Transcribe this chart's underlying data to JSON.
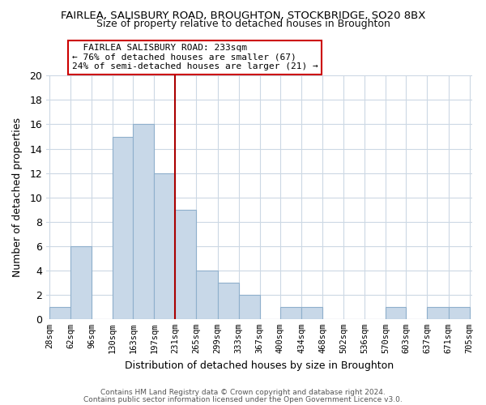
{
  "title": "FAIRLEA, SALISBURY ROAD, BROUGHTON, STOCKBRIDGE, SO20 8BX",
  "subtitle": "Size of property relative to detached houses in Broughton",
  "xlabel": "Distribution of detached houses by size in Broughton",
  "ylabel": "Number of detached properties",
  "bar_color": "#c8d8e8",
  "bar_edge_color": "#8fb0cc",
  "grid_color": "#ccd8e4",
  "vline_color": "#aa0000",
  "bin_edges": [
    28,
    62,
    96,
    130,
    163,
    197,
    231,
    265,
    299,
    333,
    367,
    400,
    434,
    468,
    502,
    536,
    570,
    603,
    637,
    671,
    705
  ],
  "bin_labels": [
    "28sqm",
    "62sqm",
    "96sqm",
    "130sqm",
    "163sqm",
    "197sqm",
    "231sqm",
    "265sqm",
    "299sqm",
    "333sqm",
    "367sqm",
    "400sqm",
    "434sqm",
    "468sqm",
    "502sqm",
    "536sqm",
    "570sqm",
    "603sqm",
    "637sqm",
    "671sqm",
    "705sqm"
  ],
  "counts": [
    1,
    6,
    0,
    15,
    16,
    12,
    9,
    4,
    3,
    2,
    0,
    1,
    1,
    0,
    0,
    0,
    1,
    0,
    1,
    1
  ],
  "ylim": [
    0,
    20
  ],
  "yticks": [
    0,
    2,
    4,
    6,
    8,
    10,
    12,
    14,
    16,
    18,
    20
  ],
  "annotation_line1": "FAIRLEA SALISBURY ROAD: 233sqm",
  "annotation_line2": "← 76% of detached houses are smaller (67)",
  "annotation_line3": "24% of semi-detached houses are larger (21) →",
  "footer_line1": "Contains HM Land Registry data © Crown copyright and database right 2024.",
  "footer_line2": "Contains public sector information licensed under the Open Government Licence v3.0.",
  "background_color": "#ffffff",
  "fig_width": 6.0,
  "fig_height": 5.0
}
